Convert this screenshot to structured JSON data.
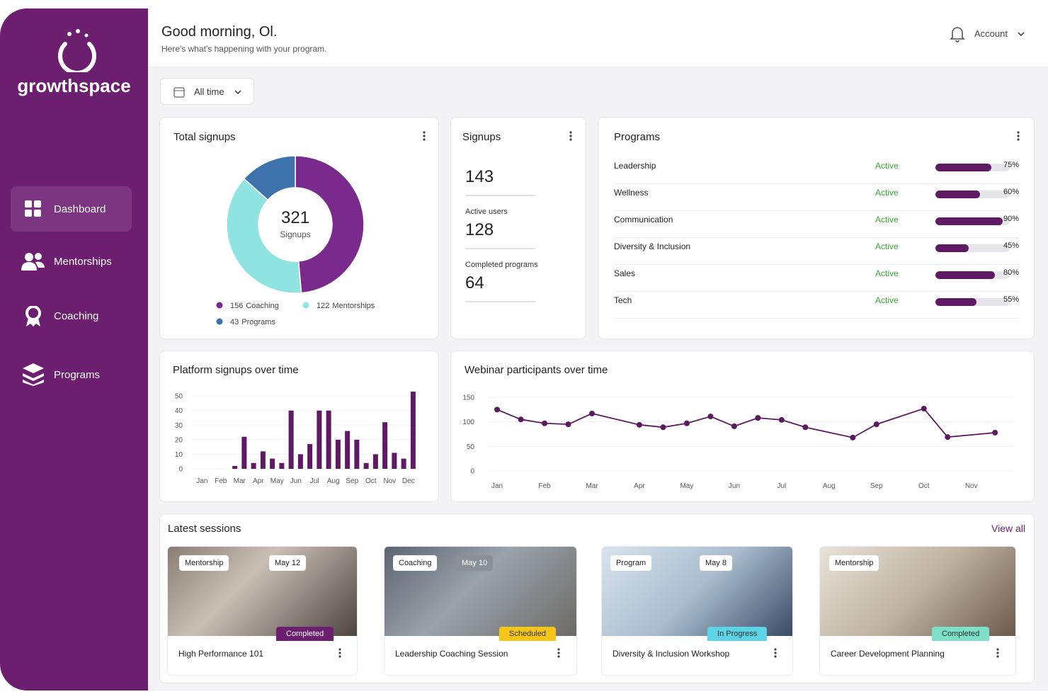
{
  "brand": "growthspace",
  "nav": [
    "Dashboard",
    "Mentorships",
    "Coaching",
    "Programs"
  ],
  "header": {
    "greeting": "Good morning, Ol.",
    "subtitle": "Here's what's happening with your program.",
    "account": "Account"
  },
  "filter": "All time",
  "signups_card": {
    "title": "Signups",
    "stats": [
      {
        "value": 143
      },
      {
        "label": "Active users",
        "value": 128
      },
      {
        "label": "Completed programs",
        "value": 64
      }
    ]
  },
  "programs": {
    "title": "Programs",
    "rows": [
      {
        "name": "Leadership",
        "status": "Active",
        "progress": 75,
        "progress_label": "75%"
      },
      {
        "name": "Wellness",
        "status": "Active",
        "progress": 60,
        "progress_label": "60%"
      },
      {
        "name": "Communication",
        "status": "Active",
        "progress": 90,
        "progress_label": "90%"
      },
      {
        "name": "Diversity & Inclusion",
        "status": "Active",
        "progress": 45,
        "progress_label": "45%"
      },
      {
        "name": "Sales",
        "status": "Active",
        "progress": 80,
        "progress_label": "80%"
      },
      {
        "name": "Tech",
        "status": "Active",
        "progress": 55,
        "progress_label": "55%"
      }
    ]
  },
  "sessions": {
    "title": "Latest sessions",
    "view_all": "View all",
    "cards": [
      {
        "type": "Mentorship",
        "date": "May 12",
        "status": "Completed",
        "title": "High Performance 101"
      },
      {
        "type": "Coaching",
        "date": "May 10",
        "status": "Scheduled",
        "title": "Leadership Coaching Session"
      },
      {
        "type": "Program",
        "date": "May 8",
        "status": "In Progress",
        "title": "Diversity & Inclusion Workshop"
      },
      {
        "type": "Mentorship",
        "status": "Completed",
        "title": "Career Development Planning"
      }
    ]
  },
  "chart_data": [
    {
      "type": "pie",
      "title": "Total signups",
      "total": 321,
      "total_label": "Signups",
      "categories": [
        "Coaching",
        "Mentorships",
        "Programs"
      ],
      "values": [
        156,
        122,
        43
      ],
      "colors": [
        "#7a2a8c",
        "#8fe3e0",
        "#3e72ad"
      ]
    },
    {
      "type": "bar",
      "title": "Platform signups over time",
      "color": "#5e1a63",
      "categories": [
        "Jan",
        null,
        "Feb",
        null,
        "Mar",
        null,
        "Apr",
        null,
        "May",
        null,
        "Jun",
        null,
        "Jul",
        null,
        "Aug",
        null,
        "Sep",
        null,
        "Oct",
        null,
        "Nov",
        null,
        "Dec",
        null
      ],
      "values": [
        0,
        0,
        0,
        0,
        2,
        22,
        4,
        12,
        7,
        4,
        40,
        10,
        17,
        40,
        40,
        20,
        26,
        20,
        4,
        10,
        32,
        11,
        7,
        53
      ],
      "ylim": [
        0,
        53
      ],
      "yticks": [
        0,
        10,
        20,
        30,
        40,
        50
      ],
      "grid": true
    },
    {
      "type": "line",
      "title": "Webinar participants over time",
      "color": "#5b1a5f",
      "x": [
        0,
        0.5,
        1,
        1.5,
        2,
        3,
        3.5,
        4,
        4.5,
        5,
        5.5,
        6,
        6.5,
        7.5,
        8,
        9,
        9.5,
        10.5
      ],
      "values": [
        125,
        105,
        97,
        95,
        117,
        94,
        89,
        97,
        111,
        91,
        108,
        104,
        89,
        68,
        95,
        127,
        69,
        78
      ],
      "xlim": [
        -0.18,
        10.9
      ],
      "xticks": [
        {
          "value": 0,
          "label": "Jan"
        },
        {
          "value": 1,
          "label": "Feb"
        },
        {
          "value": 2,
          "label": "Mar"
        },
        {
          "value": 3,
          "label": "Apr"
        },
        {
          "value": 4,
          "label": "May"
        },
        {
          "value": 5,
          "label": "Jun"
        },
        {
          "value": 6,
          "label": "Jul"
        },
        {
          "value": 7,
          "label": "Aug"
        },
        {
          "value": 8,
          "label": "Sep"
        },
        {
          "value": 9,
          "label": "Oct"
        },
        {
          "value": 10,
          "label": "Nov"
        }
      ],
      "ylim": [
        0,
        150
      ],
      "yticks": [
        0,
        50,
        100,
        150
      ],
      "grid": true
    }
  ]
}
